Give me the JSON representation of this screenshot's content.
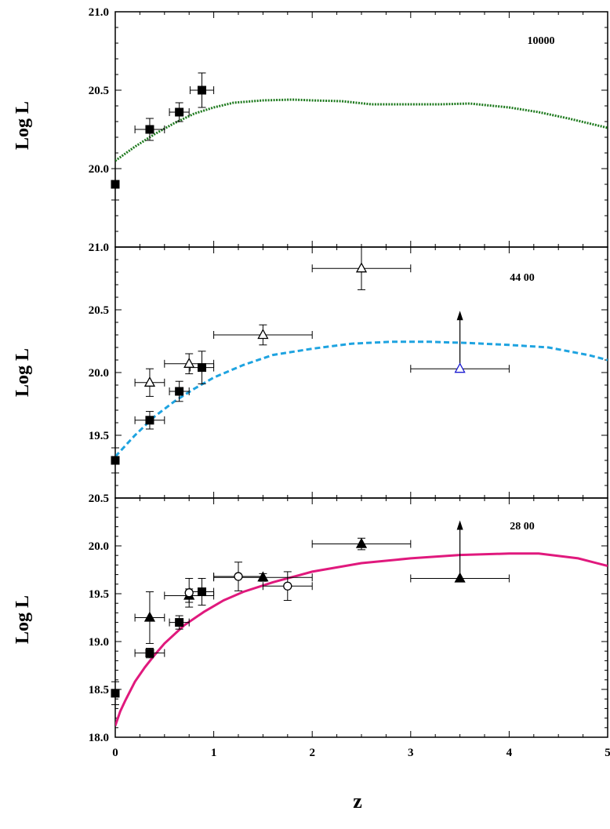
{
  "chart_data": [
    {
      "type": "line",
      "panel_label": "10000",
      "ylabel": "Log L",
      "xlim": [
        0,
        5
      ],
      "ylim": [
        19.5,
        21.0
      ],
      "ytick_labels": [
        "20.0",
        "20.5",
        "21.0"
      ],
      "ytick_values": [
        20.0,
        20.5,
        21.0
      ],
      "curve": {
        "style": "dotted",
        "color": "#1e7a1e",
        "x": [
          0,
          0.2,
          0.4,
          0.6,
          0.8,
          1.0,
          1.2,
          1.5,
          1.8,
          2.0,
          2.3,
          2.6,
          3.0,
          3.3,
          3.6,
          4.0,
          4.3,
          4.6,
          5.0
        ],
        "y": [
          20.05,
          20.14,
          20.22,
          20.29,
          20.35,
          20.39,
          20.42,
          20.435,
          20.44,
          20.435,
          20.43,
          20.41,
          20.41,
          20.41,
          20.415,
          20.39,
          20.36,
          20.32,
          20.26
        ]
      },
      "points": [
        {
          "x": 0.0,
          "y": 19.9,
          "marker": "square-filled",
          "yerr": [
            0.1,
            0.1
          ]
        },
        {
          "x": 0.35,
          "y": 20.25,
          "marker": "square-filled",
          "xerr": [
            0.15,
            0.15
          ],
          "yerr": [
            0.07,
            0.07
          ]
        },
        {
          "x": 0.65,
          "y": 20.36,
          "marker": "square-filled",
          "xerr": [
            0.1,
            0.1
          ],
          "yerr": [
            0.06,
            0.06
          ]
        },
        {
          "x": 0.88,
          "y": 20.5,
          "marker": "square-filled",
          "xerr": [
            0.12,
            0.12
          ],
          "yerr": [
            0.11,
            0.11
          ]
        }
      ]
    },
    {
      "type": "line",
      "panel_label": "44 00",
      "ylabel": "Log L",
      "xlim": [
        0,
        5
      ],
      "ylim": [
        19.0,
        21.0
      ],
      "ytick_labels": [
        "19.5",
        "20.0",
        "20.5",
        "21.0"
      ],
      "ytick_values": [
        19.5,
        20.0,
        20.5,
        21.0
      ],
      "curve": {
        "style": "dashed",
        "color": "#1ea3e0",
        "x": [
          0,
          0.2,
          0.4,
          0.6,
          0.8,
          1.0,
          1.3,
          1.6,
          2.0,
          2.4,
          2.8,
          3.2,
          3.6,
          4.0,
          4.4,
          4.8,
          5.0
        ],
        "y": [
          19.33,
          19.5,
          19.65,
          19.77,
          19.87,
          19.96,
          20.06,
          20.14,
          20.19,
          20.23,
          20.245,
          20.245,
          20.235,
          20.22,
          20.2,
          20.14,
          20.1
        ]
      },
      "points": [
        {
          "x": 0.0,
          "y": 19.3,
          "marker": "square-filled",
          "yerr": [
            0.1,
            0.1
          ]
        },
        {
          "x": 0.35,
          "y": 19.62,
          "marker": "square-filled",
          "xerr": [
            0.15,
            0.15
          ],
          "yerr": [
            0.07,
            0.07
          ]
        },
        {
          "x": 0.65,
          "y": 19.85,
          "marker": "square-filled",
          "xerr": [
            0.1,
            0.1
          ],
          "yerr": [
            0.08,
            0.08
          ]
        },
        {
          "x": 0.88,
          "y": 20.04,
          "marker": "square-filled",
          "xerr": [
            0.12,
            0.12
          ],
          "yerr": [
            0.13,
            0.13
          ]
        },
        {
          "x": 0.35,
          "y": 19.92,
          "marker": "triangle-open",
          "xerr": [
            0.15,
            0.15
          ],
          "yerr": [
            0.11,
            0.11
          ]
        },
        {
          "x": 0.75,
          "y": 20.07,
          "marker": "triangle-open",
          "xerr": [
            0.25,
            0.25
          ],
          "yerr": [
            0.08,
            0.08
          ]
        },
        {
          "x": 1.5,
          "y": 20.3,
          "marker": "triangle-open",
          "xerr": [
            0.5,
            0.5
          ],
          "yerr": [
            0.08,
            0.08
          ]
        },
        {
          "x": 2.5,
          "y": 20.83,
          "marker": "triangle-open",
          "xerr": [
            0.5,
            0.5
          ],
          "yerr": [
            0.17,
            0.17
          ]
        },
        {
          "x": 3.5,
          "y": 20.03,
          "marker": "triangle-open-blue",
          "xerr": [
            0.5,
            0.5
          ],
          "lower_limit": true
        }
      ]
    },
    {
      "type": "line",
      "panel_label": "28 00",
      "ylabel": "Log L",
      "xlabel": "z",
      "xlim": [
        0,
        5
      ],
      "ylim": [
        18.0,
        20.5
      ],
      "xtick_labels": [
        "0",
        "1",
        "2",
        "3",
        "4",
        "5"
      ],
      "xtick_values": [
        0,
        1,
        2,
        3,
        4,
        5
      ],
      "ytick_labels": [
        "18.0",
        "18.5",
        "19.0",
        "19.5",
        "20.0",
        "20.5"
      ],
      "ytick_values": [
        18.0,
        18.5,
        19.0,
        19.5,
        20.0,
        20.5
      ],
      "curve": {
        "style": "solid",
        "color": "#e0197d",
        "x": [
          0,
          0.05,
          0.1,
          0.2,
          0.3,
          0.4,
          0.5,
          0.7,
          0.9,
          1.1,
          1.3,
          1.6,
          2.0,
          2.5,
          3.0,
          3.5,
          4.0,
          4.3,
          4.7,
          5.0
        ],
        "y": [
          18.12,
          18.27,
          18.38,
          18.58,
          18.73,
          18.86,
          18.98,
          19.17,
          19.31,
          19.43,
          19.52,
          19.62,
          19.73,
          19.82,
          19.87,
          19.905,
          19.92,
          19.92,
          19.87,
          19.79
        ]
      },
      "points": [
        {
          "x": 0.0,
          "y": 18.46,
          "marker": "square-filled",
          "yerr": [
            0.12,
            0.12
          ]
        },
        {
          "x": 0.35,
          "y": 18.88,
          "marker": "square-filled",
          "xerr": [
            0.15,
            0.15
          ],
          "yerr": [
            0.05,
            0.05
          ]
        },
        {
          "x": 0.65,
          "y": 19.2,
          "marker": "square-filled",
          "xerr": [
            0.1,
            0.1
          ],
          "yerr": [
            0.07,
            0.07
          ]
        },
        {
          "x": 0.88,
          "y": 19.52,
          "marker": "square-filled",
          "xerr": [
            0.12,
            0.12
          ],
          "yerr": [
            0.14,
            0.14
          ]
        },
        {
          "x": 0.35,
          "y": 19.25,
          "marker": "triangle-filled",
          "xerr": [
            0.15,
            0.15
          ],
          "yerr": [
            0.27,
            0.27
          ]
        },
        {
          "x": 0.75,
          "y": 19.48,
          "marker": "triangle-filled",
          "xerr": [
            0.25,
            0.25
          ],
          "yerr": [
            0.07,
            0.07
          ]
        },
        {
          "x": 1.5,
          "y": 19.67,
          "marker": "triangle-filled",
          "xerr": [
            0.5,
            0.5
          ],
          "yerr": [
            0.04,
            0.04
          ]
        },
        {
          "x": 2.5,
          "y": 20.02,
          "marker": "triangle-filled",
          "xerr": [
            0.5,
            0.5
          ],
          "yerr": [
            0.06,
            0.06
          ]
        },
        {
          "x": 3.5,
          "y": 19.66,
          "marker": "triangle-filled",
          "xerr": [
            0.5,
            0.5
          ],
          "lower_limit": true
        },
        {
          "x": 0.75,
          "y": 19.51,
          "marker": "circle-open",
          "yerr": [
            0.15,
            0.15
          ]
        },
        {
          "x": 1.25,
          "y": 19.68,
          "marker": "circle-open",
          "xerr": [
            0.25,
            0.25
          ],
          "yerr": [
            0.15,
            0.15
          ]
        },
        {
          "x": 1.75,
          "y": 19.58,
          "marker": "circle-open",
          "xerr": [
            0.25,
            0.25
          ],
          "yerr": [
            0.15,
            0.15
          ]
        }
      ]
    }
  ]
}
